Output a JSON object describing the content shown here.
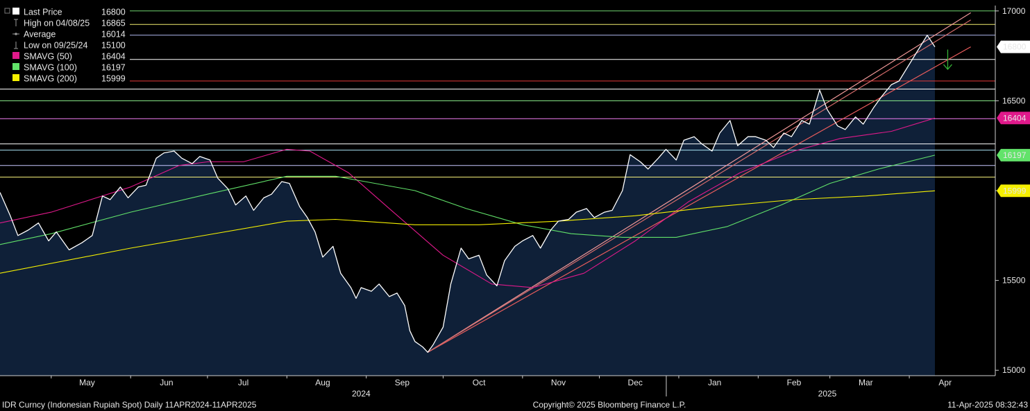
{
  "chart_data": {
    "type": "line",
    "ticker_label": "IDR Curncy (Indonesian Rupiah Spot)  Daily 11APR2024-11APR2025",
    "copyright": "Copyright© 2025 Bloomberg Finance L.P.",
    "timestamp": "11-Apr-2025 08:32:43",
    "y_axis": {
      "min": 14970,
      "max": 17030,
      "ticks": [
        15000,
        15500,
        16000,
        16500,
        17000
      ],
      "tick_labels": [
        "15000",
        "15500",
        "",
        "16500",
        "17000"
      ]
    },
    "x_axis": {
      "months": [
        {
          "label": "May",
          "x": "2024-05-15"
        },
        {
          "label": "Jun",
          "x": "2024-06-15"
        },
        {
          "label": "Jul",
          "x": "2024-07-15"
        },
        {
          "label": "Aug",
          "x": "2024-08-15"
        },
        {
          "label": "Sep",
          "x": "2024-09-15"
        },
        {
          "label": "Oct",
          "x": "2024-10-15"
        },
        {
          "label": "Nov",
          "x": "2024-11-15"
        },
        {
          "label": "Dec",
          "x": "2024-12-15"
        },
        {
          "label": "Jan",
          "x": "2025-01-15"
        },
        {
          "label": "Feb",
          "x": "2025-02-15"
        },
        {
          "label": "Mar",
          "x": "2025-03-15"
        },
        {
          "label": "Apr",
          "x": "2025-04-15"
        }
      ],
      "years": [
        {
          "label": "2024",
          "x": "2024-08-30"
        },
        {
          "label": "2025",
          "x": "2025-02-28"
        }
      ],
      "range": [
        "2024-04-11",
        "2025-04-25"
      ]
    },
    "legend": [
      {
        "label": "Last Price",
        "value": "16800",
        "color": "#ffffff",
        "marker": "square"
      },
      {
        "label": "High on 04/08/25",
        "value": "16865",
        "color": "#9a9a9a",
        "marker": "high"
      },
      {
        "label": "Average",
        "value": "16014",
        "color": "#9a9a9a",
        "marker": "average"
      },
      {
        "label": "Low on 09/25/24",
        "value": "15100",
        "color": "#9a9a9a",
        "marker": "low"
      },
      {
        "label": "SMAVG (50)",
        "value": "16404",
        "color": "#e0198b",
        "marker": "square"
      },
      {
        "label": "SMAVG (100)",
        "value": "16197",
        "color": "#62e36a",
        "marker": "square"
      },
      {
        "label": "SMAVG (200)",
        "value": "15999",
        "color": "#f5f000",
        "marker": "square"
      }
    ],
    "price_tags": [
      {
        "value": 16800,
        "label": "16800",
        "bg": "#ffffff",
        "fg": "#000000"
      },
      {
        "value": 16404,
        "label": "16404",
        "bg": "#e0198b",
        "fg": "#ffffff"
      },
      {
        "value": 16197,
        "label": "16197",
        "bg": "#62e36a",
        "fg": "#000000"
      },
      {
        "value": 15999,
        "label": "15999",
        "bg": "#f5f000",
        "fg": "#000000"
      }
    ],
    "horizontal_lines": [
      {
        "value": 17000,
        "color": "#6ed36e"
      },
      {
        "value": 16925,
        "color": "#f1ec6e"
      },
      {
        "value": 16865,
        "color": "#b2b9f2"
      },
      {
        "value": 16730,
        "color": "#ffffff"
      },
      {
        "value": 16610,
        "color": "#e53a3a"
      },
      {
        "value": 16565,
        "color": "#ffffff"
      },
      {
        "value": 16500,
        "color": "#8cf08c"
      },
      {
        "value": 16400,
        "color": "#f27ef2"
      },
      {
        "value": 16260,
        "color": "#ffffff"
      },
      {
        "value": 16225,
        "color": "#a9e4f5"
      },
      {
        "value": 16140,
        "color": "#c8c8ff"
      },
      {
        "value": 16075,
        "color": "#f7f07a"
      }
    ],
    "trend_lines": [
      {
        "from": {
          "x": "2024-09-25",
          "y": 15100
        },
        "to": {
          "x": "2025-04-25",
          "y": 16990
        },
        "color": "#f39a9a"
      },
      {
        "from": {
          "x": "2024-09-25",
          "y": 15100
        },
        "to": {
          "x": "2025-04-25",
          "y": 16800
        },
        "color": "#e85c5c"
      },
      {
        "from": {
          "x": "2024-09-25",
          "y": 15100
        },
        "to": {
          "x": "2025-04-25",
          "y": 16950
        },
        "color": "#d46b6b"
      }
    ],
    "arrow_annotation": {
      "x": "2025-04-16",
      "y_from": 16785,
      "y_to": 16675,
      "color": "#36b336"
    },
    "series": [
      {
        "name": "Last Price",
        "color": "#ffffff",
        "points": [
          [
            "2024-04-11",
            15990
          ],
          [
            "2024-04-15",
            15860
          ],
          [
            "2024-04-18",
            15750
          ],
          [
            "2024-04-22",
            15780
          ],
          [
            "2024-04-26",
            15820
          ],
          [
            "2024-04-30",
            15720
          ],
          [
            "2024-05-03",
            15770
          ],
          [
            "2024-05-08",
            15670
          ],
          [
            "2024-05-13",
            15710
          ],
          [
            "2024-05-17",
            15750
          ],
          [
            "2024-05-21",
            15970
          ],
          [
            "2024-05-24",
            15950
          ],
          [
            "2024-05-28",
            16020
          ],
          [
            "2024-05-31",
            15960
          ],
          [
            "2024-06-04",
            16020
          ],
          [
            "2024-06-07",
            16030
          ],
          [
            "2024-06-11",
            16180
          ],
          [
            "2024-06-14",
            16210
          ],
          [
            "2024-06-18",
            16220
          ],
          [
            "2024-06-21",
            16180
          ],
          [
            "2024-06-25",
            16150
          ],
          [
            "2024-06-28",
            16190
          ],
          [
            "2024-07-02",
            16170
          ],
          [
            "2024-07-05",
            16070
          ],
          [
            "2024-07-09",
            16010
          ],
          [
            "2024-07-12",
            15920
          ],
          [
            "2024-07-16",
            15970
          ],
          [
            "2024-07-19",
            15890
          ],
          [
            "2024-07-23",
            15960
          ],
          [
            "2024-07-26",
            15980
          ],
          [
            "2024-07-30",
            16050
          ],
          [
            "2024-08-02",
            16040
          ],
          [
            "2024-08-06",
            15910
          ],
          [
            "2024-08-09",
            15850
          ],
          [
            "2024-08-12",
            15770
          ],
          [
            "2024-08-15",
            15630
          ],
          [
            "2024-08-19",
            15690
          ],
          [
            "2024-08-22",
            15540
          ],
          [
            "2024-08-26",
            15460
          ],
          [
            "2024-08-28",
            15400
          ],
          [
            "2024-08-30",
            15460
          ],
          [
            "2024-09-03",
            15440
          ],
          [
            "2024-09-06",
            15480
          ],
          [
            "2024-09-10",
            15410
          ],
          [
            "2024-09-13",
            15430
          ],
          [
            "2024-09-16",
            15360
          ],
          [
            "2024-09-18",
            15220
          ],
          [
            "2024-09-20",
            15160
          ],
          [
            "2024-09-23",
            15130
          ],
          [
            "2024-09-25",
            15100
          ],
          [
            "2024-09-27",
            15140
          ],
          [
            "2024-10-01",
            15240
          ],
          [
            "2024-10-04",
            15480
          ],
          [
            "2024-10-08",
            15680
          ],
          [
            "2024-10-11",
            15620
          ],
          [
            "2024-10-15",
            15640
          ],
          [
            "2024-10-18",
            15530
          ],
          [
            "2024-10-22",
            15470
          ],
          [
            "2024-10-25",
            15610
          ],
          [
            "2024-10-29",
            15690
          ],
          [
            "2024-11-01",
            15720
          ],
          [
            "2024-11-05",
            15750
          ],
          [
            "2024-11-08",
            15680
          ],
          [
            "2024-11-12",
            15780
          ],
          [
            "2024-11-15",
            15830
          ],
          [
            "2024-11-19",
            15840
          ],
          [
            "2024-11-22",
            15880
          ],
          [
            "2024-11-26",
            15900
          ],
          [
            "2024-11-29",
            15850
          ],
          [
            "2024-12-03",
            15880
          ],
          [
            "2024-12-06",
            15890
          ],
          [
            "2024-12-10",
            16000
          ],
          [
            "2024-12-13",
            16200
          ],
          [
            "2024-12-17",
            16160
          ],
          [
            "2024-12-20",
            16120
          ],
          [
            "2024-12-24",
            16180
          ],
          [
            "2024-12-27",
            16230
          ],
          [
            "2024-12-31",
            16170
          ],
          [
            "2025-01-03",
            16280
          ],
          [
            "2025-01-07",
            16300
          ],
          [
            "2025-01-10",
            16260
          ],
          [
            "2025-01-14",
            16220
          ],
          [
            "2025-01-17",
            16320
          ],
          [
            "2025-01-21",
            16390
          ],
          [
            "2025-01-24",
            16250
          ],
          [
            "2025-01-28",
            16300
          ],
          [
            "2025-01-31",
            16300
          ],
          [
            "2025-02-04",
            16280
          ],
          [
            "2025-02-07",
            16240
          ],
          [
            "2025-02-11",
            16320
          ],
          [
            "2025-02-14",
            16300
          ],
          [
            "2025-02-18",
            16390
          ],
          [
            "2025-02-21",
            16370
          ],
          [
            "2025-02-25",
            16560
          ],
          [
            "2025-02-28",
            16450
          ],
          [
            "2025-03-04",
            16360
          ],
          [
            "2025-03-07",
            16340
          ],
          [
            "2025-03-11",
            16410
          ],
          [
            "2025-03-14",
            16370
          ],
          [
            "2025-03-18",
            16460
          ],
          [
            "2025-03-21",
            16520
          ],
          [
            "2025-03-25",
            16590
          ],
          [
            "2025-03-28",
            16610
          ],
          [
            "2025-04-08",
            16865
          ],
          [
            "2025-04-11",
            16800
          ]
        ]
      },
      {
        "name": "SMAVG (50)",
        "color": "#e0198b",
        "points": [
          [
            "2024-04-11",
            15820
          ],
          [
            "2024-05-01",
            15880
          ],
          [
            "2024-06-01",
            16020
          ],
          [
            "2024-06-20",
            16140
          ],
          [
            "2024-07-01",
            16160
          ],
          [
            "2024-07-15",
            16160
          ],
          [
            "2024-08-01",
            16230
          ],
          [
            "2024-08-10",
            16220
          ],
          [
            "2024-08-25",
            16100
          ],
          [
            "2024-09-10",
            15900
          ],
          [
            "2024-10-01",
            15640
          ],
          [
            "2024-10-20",
            15480
          ],
          [
            "2024-11-05",
            15460
          ],
          [
            "2024-11-25",
            15540
          ],
          [
            "2024-12-15",
            15720
          ],
          [
            "2025-01-05",
            15940
          ],
          [
            "2025-01-25",
            16100
          ],
          [
            "2025-02-15",
            16220
          ],
          [
            "2025-03-05",
            16290
          ],
          [
            "2025-03-25",
            16330
          ],
          [
            "2025-04-11",
            16404
          ]
        ]
      },
      {
        "name": "SMAVG (100)",
        "color": "#62e36a",
        "points": [
          [
            "2024-04-11",
            15700
          ],
          [
            "2024-05-01",
            15760
          ],
          [
            "2024-06-01",
            15880
          ],
          [
            "2024-07-01",
            15980
          ],
          [
            "2024-08-01",
            16080
          ],
          [
            "2024-08-20",
            16080
          ],
          [
            "2024-09-20",
            16000
          ],
          [
            "2024-10-10",
            15900
          ],
          [
            "2024-11-01",
            15810
          ],
          [
            "2024-11-20",
            15760
          ],
          [
            "2024-12-10",
            15740
          ],
          [
            "2024-12-31",
            15740
          ],
          [
            "2025-01-20",
            15800
          ],
          [
            "2025-02-10",
            15920
          ],
          [
            "2025-03-01",
            16040
          ],
          [
            "2025-03-20",
            16120
          ],
          [
            "2025-04-11",
            16197
          ]
        ]
      },
      {
        "name": "SMAVG (200)",
        "color": "#f5f000",
        "points": [
          [
            "2024-04-11",
            15540
          ],
          [
            "2024-06-01",
            15680
          ],
          [
            "2024-08-01",
            15830
          ],
          [
            "2024-08-20",
            15840
          ],
          [
            "2024-09-20",
            15810
          ],
          [
            "2024-10-15",
            15810
          ],
          [
            "2024-11-15",
            15830
          ],
          [
            "2024-12-15",
            15860
          ],
          [
            "2025-01-15",
            15910
          ],
          [
            "2025-02-15",
            15950
          ],
          [
            "2025-03-15",
            15970
          ],
          [
            "2025-04-11",
            15999
          ]
        ]
      }
    ]
  }
}
